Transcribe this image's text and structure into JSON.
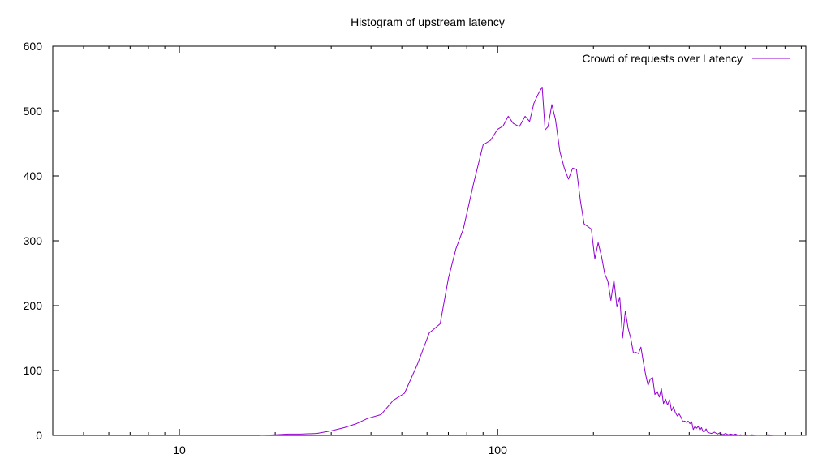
{
  "chart_data": {
    "type": "line",
    "title": "Histogram of upstream latency",
    "xlabel": "",
    "ylabel": "",
    "x_scale": "log",
    "xlim": [
      4.0,
      930.0
    ],
    "ylim": [
      0,
      600
    ],
    "x_ticks": [
      {
        "value": 10,
        "label": "10"
      },
      {
        "value": 100,
        "label": "100"
      }
    ],
    "y_ticks": [
      {
        "value": 0,
        "label": "0"
      },
      {
        "value": 100,
        "label": "100"
      },
      {
        "value": 200,
        "label": "200"
      },
      {
        "value": 300,
        "label": "300"
      },
      {
        "value": 400,
        "label": "400"
      },
      {
        "value": 500,
        "label": "500"
      },
      {
        "value": 600,
        "label": "600"
      }
    ],
    "grid": false,
    "legend_position": "top-right",
    "series": [
      {
        "name": "Crowd of requests over Latency",
        "color": "#9400d3",
        "x": [
          18,
          20,
          22,
          24,
          27,
          30,
          33,
          36,
          39,
          43,
          47,
          51,
          56,
          61,
          66,
          70,
          74,
          78,
          84,
          90,
          95,
          100,
          104,
          108,
          112,
          117,
          122,
          126,
          130,
          134,
          138,
          141,
          144,
          148,
          152,
          157,
          162,
          167,
          172,
          177,
          182,
          187,
          192,
          197,
          202,
          207,
          212,
          217,
          222,
          227,
          232,
          237,
          242,
          247,
          252,
          257,
          262,
          267,
          272,
          277,
          282,
          287,
          292,
          297,
          302,
          307,
          312,
          317,
          322,
          327,
          332,
          337,
          342,
          347,
          352,
          357,
          362,
          367,
          372,
          377,
          382,
          387,
          392,
          397,
          402,
          407,
          412,
          417,
          422,
          427,
          432,
          437,
          442,
          447,
          452,
          457,
          462,
          470,
          480,
          490,
          500,
          510,
          520,
          530,
          540,
          550,
          560,
          570,
          580,
          590,
          600,
          615,
          630,
          650,
          670,
          690,
          710,
          740,
          770,
          800,
          830,
          860,
          900,
          930
        ],
        "y": [
          0,
          1,
          2,
          2,
          3,
          7,
          12,
          18,
          26,
          32,
          54,
          65,
          110,
          158,
          172,
          242,
          288,
          318,
          388,
          448,
          455,
          472,
          477,
          492,
          481,
          476,
          492,
          484,
          512,
          526,
          537,
          471,
          476,
          510,
          487,
          437,
          412,
          395,
          412,
          410,
          362,
          326,
          322,
          318,
          272,
          297,
          276,
          249,
          238,
          208,
          240,
          198,
          213,
          150,
          192,
          165,
          150,
          127,
          128,
          126,
          136,
          113,
          93,
          77,
          87,
          89,
          63,
          68,
          59,
          72,
          49,
          56,
          47,
          55,
          38,
          44,
          35,
          30,
          33,
          28,
          21,
          22,
          20,
          22,
          18,
          21,
          9,
          14,
          11,
          14,
          8,
          12,
          6,
          6,
          10,
          5,
          4,
          3,
          5,
          2,
          4,
          1,
          3,
          1,
          2,
          1,
          2,
          0,
          1,
          0,
          1,
          0,
          1,
          0,
          0,
          0,
          1,
          0,
          0,
          0,
          0,
          0,
          0,
          0
        ]
      }
    ]
  }
}
